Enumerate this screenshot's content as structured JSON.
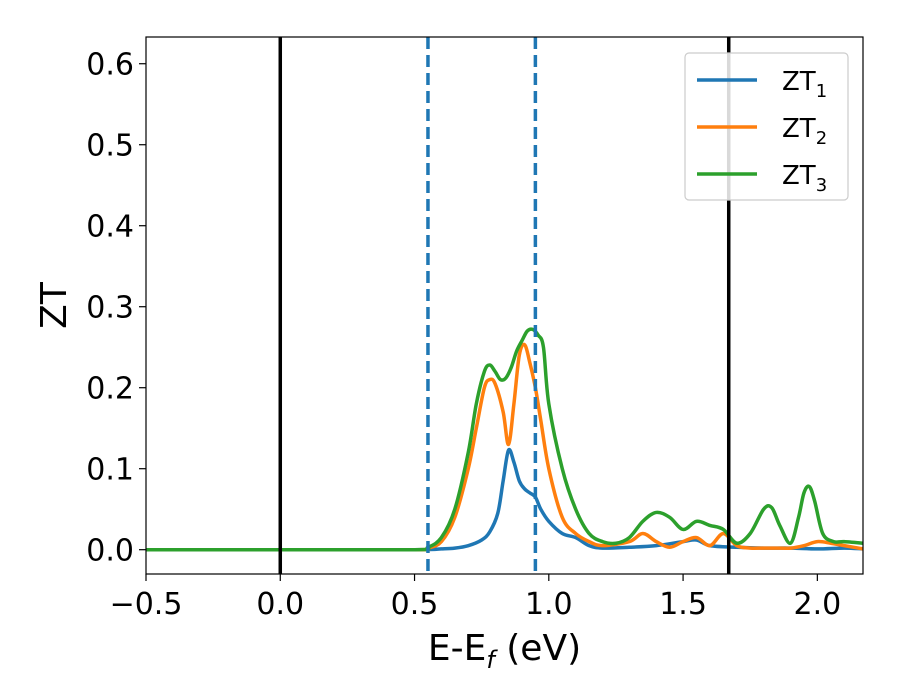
{
  "chart_data": {
    "type": "line",
    "xlabel": "E-E",
    "xlabel_sub": "f",
    "xlabel_unit": "(eV)",
    "ylabel": "ZT",
    "xlim": [
      -0.5,
      2.17
    ],
    "ylim": [
      -0.03,
      0.633
    ],
    "xticks": [
      -0.5,
      0.0,
      0.5,
      1.0,
      1.5,
      2.0
    ],
    "xtick_labels": [
      "−0.5",
      "0.0",
      "0.5",
      "1.0",
      "1.5",
      "2.0"
    ],
    "yticks": [
      0.0,
      0.1,
      0.2,
      0.3,
      0.4,
      0.5,
      0.6
    ],
    "ytick_labels": [
      "0.0",
      "0.1",
      "0.2",
      "0.3",
      "0.4",
      "0.5",
      "0.6"
    ],
    "grid": false,
    "legend_position": "top-right",
    "vertical_lines": [
      {
        "x": 0.0,
        "style": "solid",
        "color": "#000000"
      },
      {
        "x": 1.67,
        "style": "solid",
        "color": "#000000"
      },
      {
        "x": 0.55,
        "style": "dashed",
        "color": "#1f77b4"
      },
      {
        "x": 0.95,
        "style": "dashed",
        "color": "#1f77b4"
      }
    ],
    "series": [
      {
        "name": "ZT",
        "name_sub": "1",
        "color": "#1f77b4",
        "x": [
          -0.5,
          0.0,
          0.5,
          0.6,
          0.65,
          0.7,
          0.75,
          0.78,
          0.81,
          0.83,
          0.85,
          0.87,
          0.89,
          0.91,
          0.93,
          0.95,
          0.97,
          1.0,
          1.05,
          1.1,
          1.15,
          1.2,
          1.3,
          1.4,
          1.5,
          1.55,
          1.6,
          1.7,
          1.8,
          1.9,
          2.0,
          2.1,
          2.17
        ],
        "y": [
          0.0,
          0.0,
          0.0,
          0.001,
          0.002,
          0.005,
          0.012,
          0.022,
          0.045,
          0.085,
          0.123,
          0.108,
          0.085,
          0.075,
          0.07,
          0.065,
          0.05,
          0.035,
          0.02,
          0.015,
          0.005,
          0.002,
          0.003,
          0.005,
          0.01,
          0.012,
          0.005,
          0.003,
          0.002,
          0.002,
          0.001,
          0.002,
          0.001
        ]
      },
      {
        "name": "ZT",
        "name_sub": "2",
        "color": "#ff7f0e",
        "x": [
          -0.5,
          0.0,
          0.5,
          0.55,
          0.6,
          0.65,
          0.7,
          0.73,
          0.76,
          0.78,
          0.8,
          0.83,
          0.85,
          0.87,
          0.89,
          0.91,
          0.93,
          0.95,
          0.97,
          1.0,
          1.05,
          1.1,
          1.15,
          1.2,
          1.3,
          1.35,
          1.4,
          1.45,
          1.5,
          1.55,
          1.6,
          1.65,
          1.7,
          1.75,
          1.8,
          1.85,
          1.9,
          1.95,
          2.0,
          2.05,
          2.1,
          2.17
        ],
        "y": [
          0.0,
          0.0,
          0.0,
          0.002,
          0.01,
          0.04,
          0.1,
          0.15,
          0.2,
          0.21,
          0.205,
          0.17,
          0.13,
          0.18,
          0.24,
          0.253,
          0.23,
          0.2,
          0.16,
          0.1,
          0.04,
          0.02,
          0.01,
          0.005,
          0.01,
          0.02,
          0.01,
          0.003,
          0.01,
          0.015,
          0.005,
          0.02,
          0.005,
          0.002,
          0.002,
          0.002,
          0.002,
          0.005,
          0.01,
          0.008,
          0.005,
          0.001
        ]
      },
      {
        "name": "ZT",
        "name_sub": "3",
        "color": "#2ca02c",
        "x": [
          -0.5,
          0.0,
          0.5,
          0.55,
          0.6,
          0.65,
          0.7,
          0.73,
          0.76,
          0.78,
          0.8,
          0.82,
          0.84,
          0.86,
          0.88,
          0.9,
          0.92,
          0.94,
          0.96,
          0.98,
          1.0,
          1.05,
          1.1,
          1.15,
          1.2,
          1.25,
          1.3,
          1.35,
          1.4,
          1.45,
          1.5,
          1.55,
          1.6,
          1.65,
          1.7,
          1.75,
          1.8,
          1.83,
          1.86,
          1.9,
          1.93,
          1.95,
          1.97,
          1.99,
          2.02,
          2.06,
          2.1,
          2.17
        ],
        "y": [
          0.0,
          0.0,
          0.0,
          0.003,
          0.015,
          0.05,
          0.12,
          0.18,
          0.22,
          0.228,
          0.22,
          0.21,
          0.212,
          0.225,
          0.245,
          0.258,
          0.27,
          0.272,
          0.265,
          0.25,
          0.18,
          0.1,
          0.05,
          0.02,
          0.01,
          0.008,
          0.015,
          0.035,
          0.046,
          0.04,
          0.025,
          0.035,
          0.03,
          0.025,
          0.008,
          0.02,
          0.05,
          0.052,
          0.03,
          0.008,
          0.04,
          0.07,
          0.078,
          0.06,
          0.02,
          0.01,
          0.01,
          0.008
        ]
      }
    ]
  }
}
